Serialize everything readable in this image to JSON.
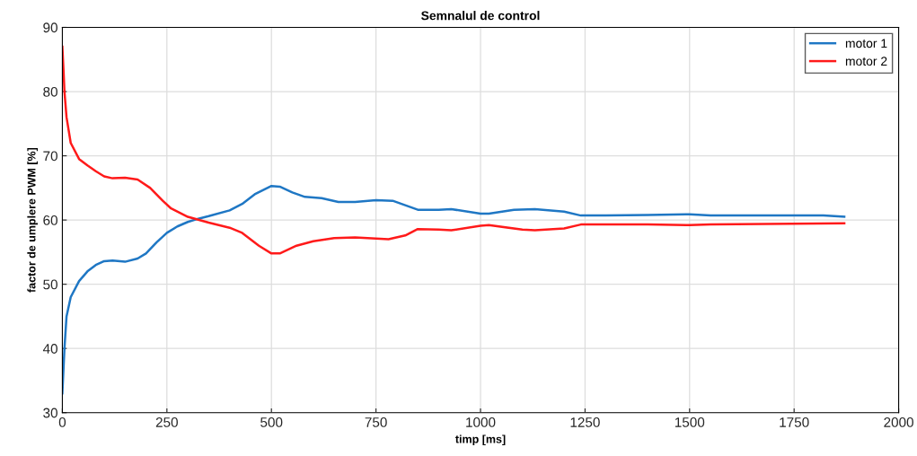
{
  "chart_data": {
    "type": "line",
    "title": "Semnalul de control",
    "xlabel": "timp [ms]",
    "ylabel": "factor de umplere PWM [%]",
    "xlim": [
      0,
      2000
    ],
    "xticks": [
      0,
      250,
      500,
      750,
      1000,
      1250,
      1500,
      1750,
      2000
    ],
    "ylim": [
      30,
      90
    ],
    "yticks": [
      30,
      40,
      50,
      60,
      70,
      80,
      90
    ],
    "grid": true,
    "legend": "top right",
    "line_style": "solid",
    "marker": "none",
    "series": [
      {
        "name": "motor 1",
        "color": "#1f77c4",
        "x": [
          0,
          5,
          10,
          20,
          40,
          60,
          80,
          100,
          120,
          150,
          180,
          200,
          225,
          250,
          275,
          300,
          325,
          350,
          400,
          430,
          460,
          500,
          520,
          550,
          580,
          620,
          660,
          700,
          750,
          790,
          850,
          900,
          930,
          1000,
          1020,
          1080,
          1130,
          1200,
          1240,
          1300,
          1400,
          1500,
          1550,
          1700,
          1820,
          1870
        ],
        "values": [
          33,
          40,
          45,
          48,
          50.5,
          52,
          53,
          53.6,
          53.7,
          53.5,
          54,
          54.8,
          56.5,
          58,
          59,
          59.7,
          60.2,
          60.6,
          61.5,
          62.5,
          64,
          65.3,
          65.2,
          64.3,
          63.6,
          63.4,
          62.8,
          62.8,
          63.1,
          63,
          61.6,
          61.6,
          61.7,
          61,
          61,
          61.6,
          61.7,
          61.3,
          60.7,
          60.7,
          60.8,
          60.9,
          60.7,
          60.7,
          60.7,
          60.5
        ]
      },
      {
        "name": "motor 2",
        "color": "#ff1a1a",
        "x": [
          0,
          3,
          5,
          10,
          20,
          40,
          60,
          80,
          100,
          120,
          150,
          180,
          210,
          240,
          260,
          300,
          350,
          400,
          430,
          470,
          500,
          520,
          560,
          600,
          650,
          700,
          780,
          820,
          850,
          900,
          930,
          1000,
          1020,
          1100,
          1130,
          1200,
          1240,
          1400,
          1500,
          1550,
          1870
        ],
        "values": [
          87,
          83,
          80,
          76,
          72,
          69.5,
          68.5,
          67.6,
          66.8,
          66.5,
          66.6,
          66.3,
          65,
          63,
          61.8,
          60.5,
          59.6,
          58.8,
          58,
          56,
          54.8,
          54.8,
          56,
          56.7,
          57.2,
          57.3,
          57,
          57.6,
          58.6,
          58.5,
          58.4,
          59.1,
          59.2,
          58.5,
          58.4,
          58.7,
          59.3,
          59.3,
          59.2,
          59.3,
          59.5
        ]
      }
    ]
  }
}
